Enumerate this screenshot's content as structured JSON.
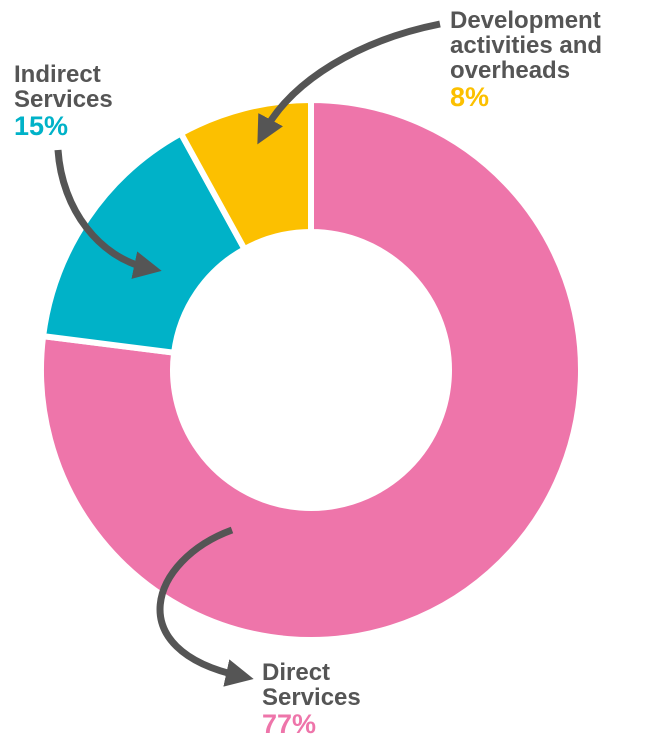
{
  "chart_data": {
    "type": "pie",
    "donut": true,
    "categories": [
      "Direct Services",
      "Indirect Services",
      "Development activities and overheads"
    ],
    "values": [
      77,
      15,
      8
    ],
    "value_labels": [
      "77%",
      "15%",
      "8%"
    ],
    "colors": [
      "#ee75aa",
      "#00b2c8",
      "#fcc000"
    ]
  }
}
